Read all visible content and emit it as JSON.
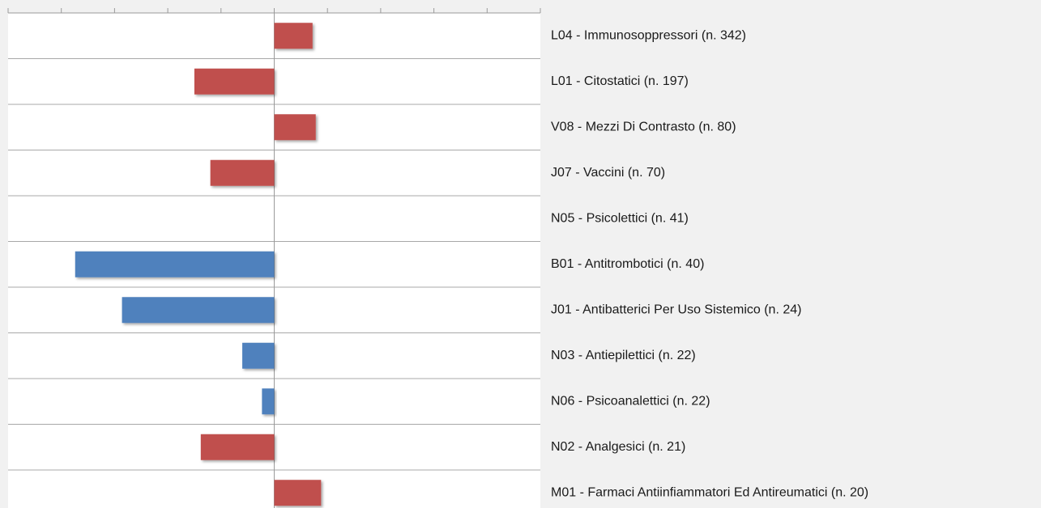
{
  "chart_data": {
    "type": "bar",
    "orientation": "horizontal",
    "categories": [
      "L04 - Immunosoppressori (n. 342)",
      "L01 - Citostatici (n. 197)",
      "V08 - Mezzi Di Contrasto (n. 80)",
      "J07 - Vaccini (n. 70)",
      "N05 - Psicolettici (n. 41)",
      "B01 - Antitrombotici (n. 40)",
      "J01 - Antibatterici Per Uso Sistemico (n. 24)",
      "N03 - Antiepilettici (n. 22)",
      "N06 - Psicoanalettici (n. 22)",
      "N02 - Analgesici (n. 21)",
      "M01 - Farmaci Antiinfiammatori Ed Antireumatici (n. 20)"
    ],
    "values": [
      0.72,
      -1.5,
      0.78,
      -1.2,
      0,
      -3.74,
      -2.86,
      -0.6,
      -0.23,
      -1.38,
      0.88
    ],
    "colors": [
      "#c0504d",
      "#c0504d",
      "#c0504d",
      "#c0504d",
      "#c0504d",
      "#4f81bd",
      "#4f81bd",
      "#4f81bd",
      "#4f81bd",
      "#c0504d",
      "#c0504d"
    ],
    "xlim": [
      -5,
      5
    ],
    "xticks": [
      -5,
      -4,
      -3,
      -2,
      -1,
      0,
      1,
      2,
      3,
      4,
      5
    ]
  }
}
